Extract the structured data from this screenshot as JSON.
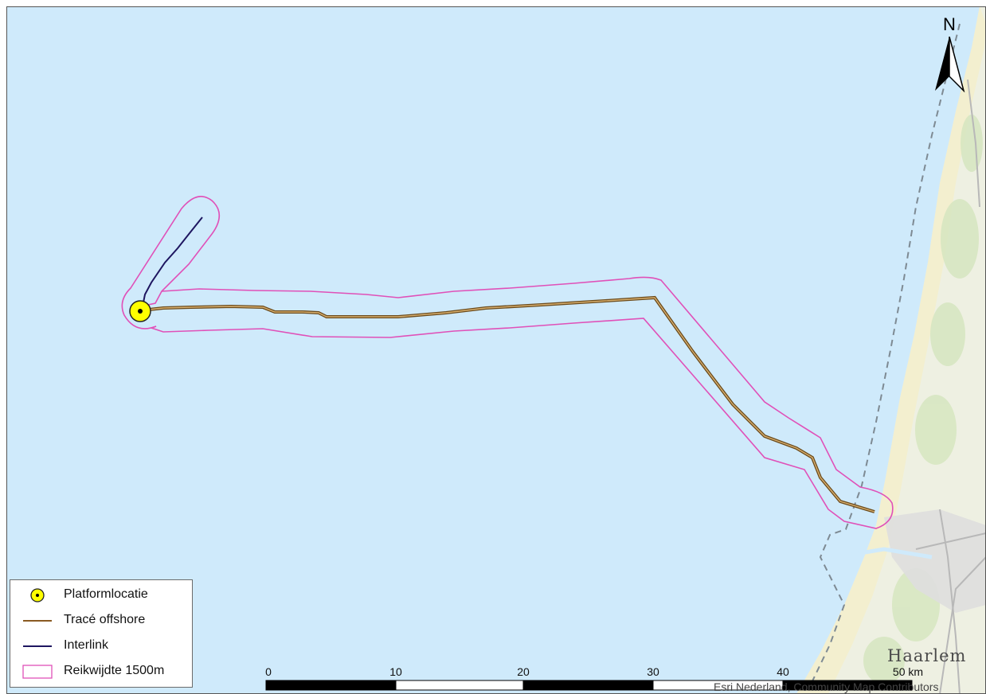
{
  "map": {
    "north_label": "N",
    "city_label": "Haarlem",
    "attribution": "Esri Nederland, Community Map Contributors",
    "colors": {
      "sea": "#cfeafb",
      "land": "#eef0e8",
      "buffer": "#e050b8",
      "trace_outer": "#6b4a1a",
      "trace_inner": "#b8863a",
      "interlink": "#1e1660",
      "platform_fill": "#ffff00"
    },
    "icons": [
      "north-arrow-icon",
      "platform-point-icon"
    ]
  },
  "legend": {
    "items": [
      {
        "label": "Platformlocatie",
        "symbol": "platform-point-icon"
      },
      {
        "label": "Tracé offshore",
        "symbol": "brown-line"
      },
      {
        "label": "Interlink",
        "symbol": "navy-line"
      },
      {
        "label": "Reikwijdte 1500m",
        "symbol": "magenta-rectangle"
      }
    ]
  },
  "scalebar": {
    "ticks": [
      "0",
      "10",
      "20",
      "30",
      "40",
      "50"
    ],
    "unit": "km"
  }
}
